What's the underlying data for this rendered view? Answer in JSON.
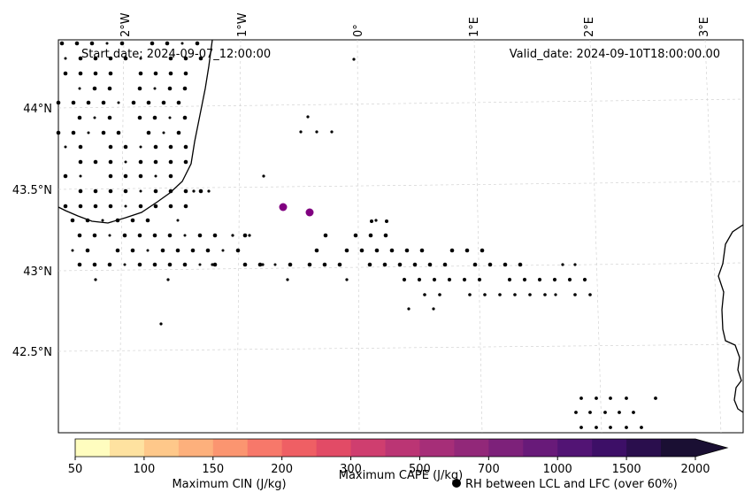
{
  "map": {
    "start_date": "Start date: 2024-09-07_12:00:00",
    "valid_date": "Valid_date: 2024-09-10T18:00:00.00",
    "lon_labels": [
      "2°W",
      "1°W",
      "0°",
      "1°E",
      "2°E",
      "3°E"
    ],
    "lat_labels": [
      "44°N",
      "43.5°N",
      "43°N",
      "42.5°N"
    ],
    "purple_marker_color": "#800080",
    "dot_color": "#000000"
  },
  "colorbar": {
    "tick_labels": [
      "50",
      "100",
      "150",
      "200",
      "300",
      "500",
      "700",
      "1000",
      "1500",
      "2000"
    ],
    "colors": [
      "#fffdbf",
      "#fee2a0",
      "#fec88a",
      "#fdb07c",
      "#fb9570",
      "#f7786a",
      "#ef5f64",
      "#e24b66",
      "#cf3e6f",
      "#bb3574",
      "#a62e78",
      "#922879",
      "#7d217a",
      "#681a79",
      "#521474",
      "#3d0f67",
      "#2a0e4d",
      "#1a0f33"
    ],
    "cin_label": "Maximum CIN (J/kg)",
    "cin_color": "#ff0000",
    "cape_label": "Maximum CAPE (J/kg)",
    "rh_label": "RH between LCL and LFC (over 60%)"
  }
}
